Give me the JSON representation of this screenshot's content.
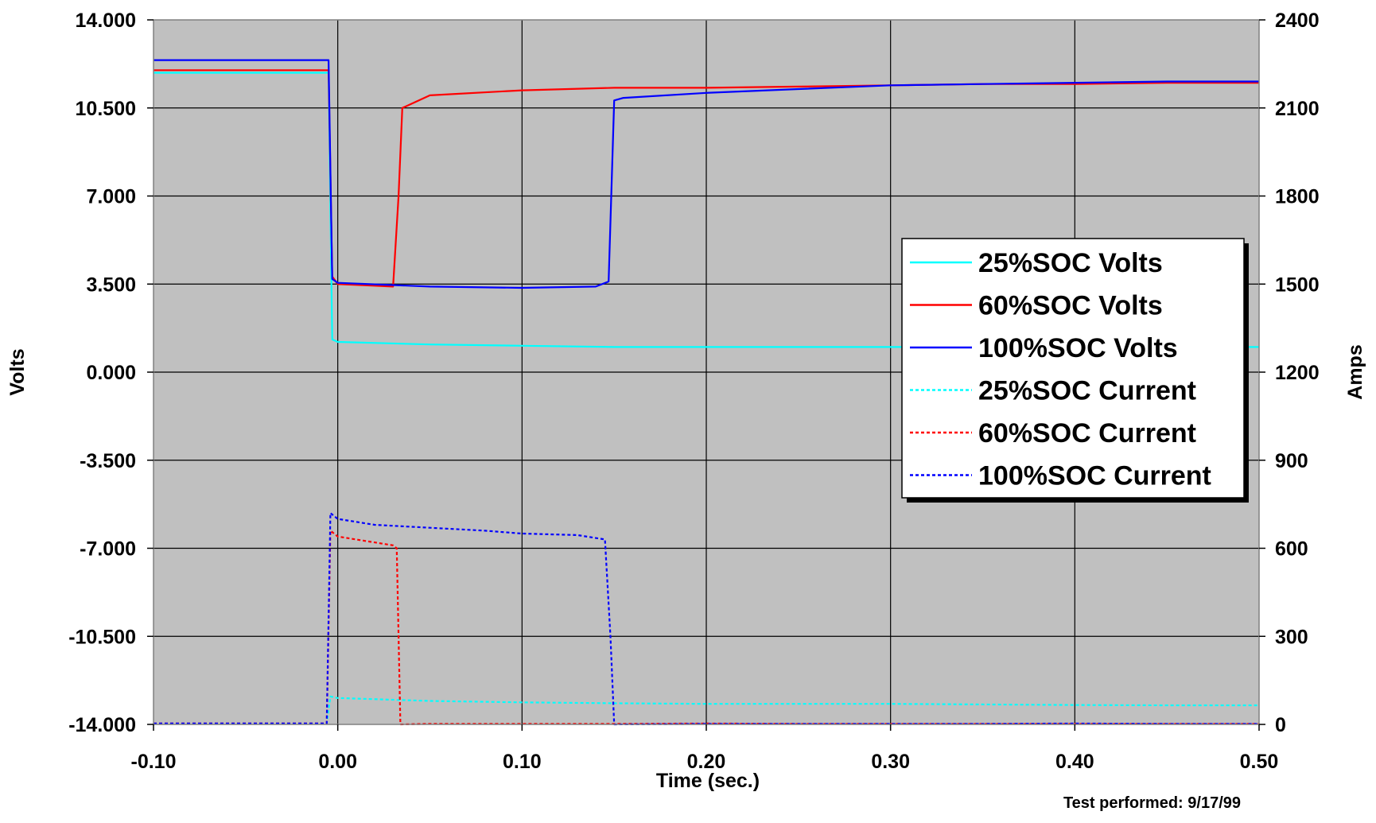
{
  "chart_data": {
    "type": "line",
    "xlabel": "Time (sec.)",
    "ylabel_left": "Volts",
    "ylabel_right": "Amps",
    "xlim": [
      -0.1,
      0.5
    ],
    "ylim_left": [
      -14.0,
      14.0
    ],
    "ylim_right": [
      0,
      2400
    ],
    "x_ticks": [
      "-0.10",
      "0.00",
      "0.10",
      "0.20",
      "0.30",
      "0.40",
      "0.50"
    ],
    "y_left_ticks": [
      "14.000",
      "10.500",
      "7.000",
      "3.500",
      "0.000",
      "-3.500",
      "-7.000",
      "-10.500",
      "-14.000"
    ],
    "y_right_ticks": [
      "2400",
      "2100",
      "1800",
      "1500",
      "1200",
      "900",
      "600",
      "300",
      "0"
    ],
    "grid": true,
    "legend_position": "right",
    "note_lines": [
      "Test performed:  9/17/99"
    ],
    "series": [
      {
        "name": "25%SOC Volts",
        "axis": "left",
        "color": "#00ffff",
        "style": "solid",
        "x": [
          -0.1,
          -0.005,
          -0.004,
          -0.003,
          0.0,
          0.05,
          0.1,
          0.15,
          0.2,
          0.25,
          0.3,
          0.35,
          0.4,
          0.45,
          0.5
        ],
        "y": [
          11.9,
          11.9,
          6.5,
          1.3,
          1.2,
          1.1,
          1.05,
          1.0,
          1.0,
          1.0,
          1.0,
          1.0,
          1.0,
          1.0,
          1.0
        ]
      },
      {
        "name": "60%SOC Volts",
        "axis": "left",
        "color": "#ff0000",
        "style": "solid",
        "x": [
          -0.1,
          -0.005,
          -0.003,
          0.0,
          0.015,
          0.03,
          0.033,
          0.035,
          0.05,
          0.1,
          0.15,
          0.2,
          0.25,
          0.3,
          0.35,
          0.4,
          0.45,
          0.5
        ],
        "y": [
          12.0,
          12.0,
          3.8,
          3.5,
          3.45,
          3.4,
          7.0,
          10.5,
          11.0,
          11.2,
          11.3,
          11.3,
          11.35,
          11.4,
          11.45,
          11.45,
          11.5,
          11.5
        ]
      },
      {
        "name": "100%SOC Volts",
        "axis": "left",
        "color": "#0000ff",
        "style": "solid",
        "x": [
          -0.1,
          -0.005,
          -0.003,
          0.0,
          0.05,
          0.1,
          0.14,
          0.147,
          0.15,
          0.155,
          0.2,
          0.25,
          0.3,
          0.35,
          0.4,
          0.45,
          0.5
        ],
        "y": [
          12.4,
          12.4,
          3.7,
          3.55,
          3.4,
          3.35,
          3.4,
          3.6,
          10.8,
          10.9,
          11.1,
          11.25,
          11.4,
          11.45,
          11.5,
          11.55,
          11.55
        ]
      },
      {
        "name": "25%SOC Current",
        "axis": "right",
        "color": "#00ffff",
        "style": "dotted",
        "x": [
          -0.1,
          -0.006,
          -0.004,
          0.0,
          0.05,
          0.1,
          0.15,
          0.2,
          0.25,
          0.3,
          0.35,
          0.4,
          0.45,
          0.5
        ],
        "y": [
          2,
          2,
          95,
          90,
          80,
          75,
          72,
          70,
          70,
          70,
          68,
          66,
          65,
          65
        ]
      },
      {
        "name": "60%SOC Current",
        "axis": "right",
        "color": "#ff0000",
        "style": "dotted",
        "x": [
          -0.1,
          -0.006,
          -0.004,
          0.0,
          0.015,
          0.03,
          0.032,
          0.034,
          0.05,
          0.1,
          0.15,
          0.2,
          0.25,
          0.3,
          0.35,
          0.4,
          0.45,
          0.5
        ],
        "y": [
          3,
          3,
          660,
          640,
          625,
          610,
          600,
          0,
          2,
          2,
          2,
          3,
          2,
          2,
          2,
          2,
          2,
          2
        ]
      },
      {
        "name": "100%SOC Current",
        "axis": "right",
        "color": "#0000ff",
        "style": "dotted",
        "x": [
          -0.1,
          -0.006,
          -0.004,
          0.0,
          0.02,
          0.05,
          0.08,
          0.1,
          0.13,
          0.145,
          0.148,
          0.15,
          0.2,
          0.25,
          0.3,
          0.35,
          0.4,
          0.45,
          0.5
        ],
        "y": [
          3,
          3,
          720,
          700,
          680,
          670,
          660,
          650,
          645,
          630,
          300,
          0,
          2,
          2,
          2,
          2,
          3,
          2,
          2
        ]
      }
    ]
  }
}
